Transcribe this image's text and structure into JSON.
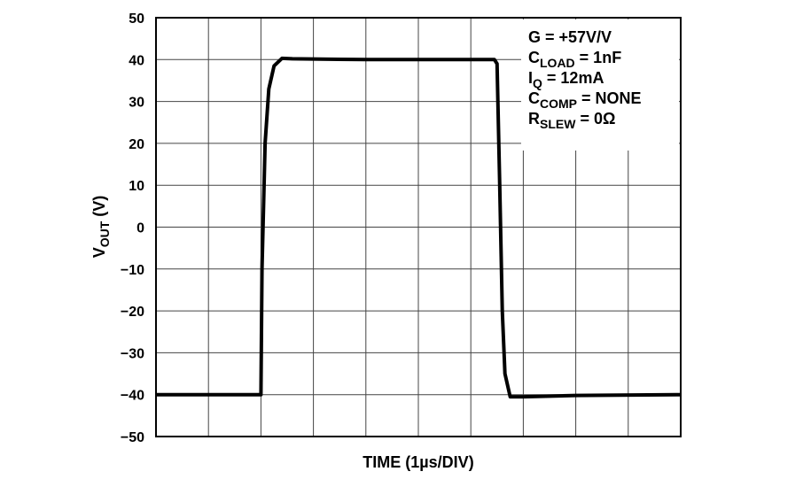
{
  "chart_data": {
    "type": "line",
    "title": "",
    "xlabel": "TIME (1µs/DIV)",
    "ylabel_main": "V",
    "ylabel_sub": "OUT",
    "ylabel_unit": " (V)",
    "xlim": [
      0,
      10
    ],
    "ylim": [
      -50,
      50
    ],
    "yticks": [
      50,
      40,
      30,
      20,
      10,
      0,
      -10,
      -20,
      -30,
      -40,
      -50
    ],
    "ytick_labels": [
      "50",
      "40",
      "30",
      "20",
      "10",
      "0",
      "−10",
      "−20",
      "−30",
      "−40",
      "−50"
    ],
    "x_divisions": 10,
    "grid": true,
    "series": [
      {
        "color": "#000000",
        "x": [
          0,
          2.0,
          2.02,
          2.08,
          2.15,
          2.25,
          2.4,
          2.6,
          4,
          6.45,
          6.5,
          6.55,
          6.6,
          6.65,
          6.75,
          7,
          8,
          10
        ],
        "y": [
          -40,
          -40,
          -10,
          20,
          33,
          38.5,
          40.3,
          40.2,
          40,
          40,
          39,
          10,
          -20,
          -35,
          -40.5,
          -40.5,
          -40.2,
          -40
        ]
      }
    ],
    "annotations": [
      {
        "main": "G = +57V/V",
        "sub": "",
        "rest": ""
      },
      {
        "main": "C",
        "sub": "LOAD",
        "rest": " = 1nF"
      },
      {
        "main": "I",
        "sub": "Q",
        "rest": " = 12mA"
      },
      {
        "main": "C",
        "sub": "COMP",
        "rest": " = NONE"
      },
      {
        "main": "R",
        "sub": "SLEW",
        "rest": " = 0Ω"
      }
    ]
  }
}
